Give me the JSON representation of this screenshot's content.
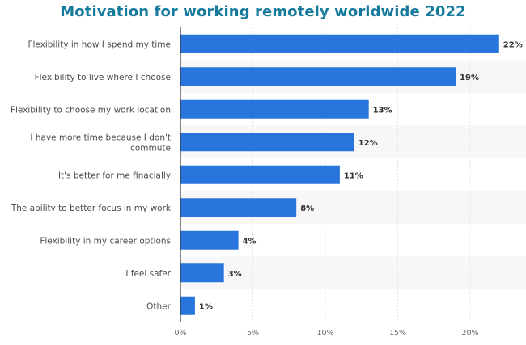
{
  "chart_data": {
    "type": "bar",
    "orientation": "horizontal",
    "title": "Motivation for working remotely worldwide 2022",
    "categories": [
      "Flexibility in how I spend my time",
      "Flexibility to live where I choose",
      "Flexibility to choose my work location",
      "I have more time because I don't commute",
      "It's better for me finacially",
      "The ability to better focus in my work",
      "Flexibility in my career options",
      "I feel safer",
      "Other"
    ],
    "category_lines": [
      [
        "Flexibility in how I spend my time"
      ],
      [
        "Flexibility to live where I choose"
      ],
      [
        "Flexibility to choose my work location"
      ],
      [
        "I have more time because I don't",
        "commute"
      ],
      [
        "It's better for me finacially"
      ],
      [
        "The ability to better focus in my work"
      ],
      [
        "Flexibility in my career options"
      ],
      [
        "I feel safer"
      ],
      [
        "Other"
      ]
    ],
    "values": [
      22,
      19,
      13,
      12,
      11,
      8,
      4,
      3,
      1
    ],
    "value_labels": [
      "22%",
      "19%",
      "13%",
      "12%",
      "11%",
      "8%",
      "4%",
      "3%",
      "1%"
    ],
    "unit": "%",
    "xlim": [
      0,
      24
    ],
    "ticks": [
      0,
      5,
      10,
      15,
      20
    ],
    "tick_labels": [
      "0%",
      "5%",
      "10%",
      "15%",
      "20%"
    ],
    "grid": true,
    "bar_color": "#2876dd",
    "title_color": "#157a9c",
    "band_color": "#f7f7f7",
    "grid_color": "#e4e4e4"
  }
}
